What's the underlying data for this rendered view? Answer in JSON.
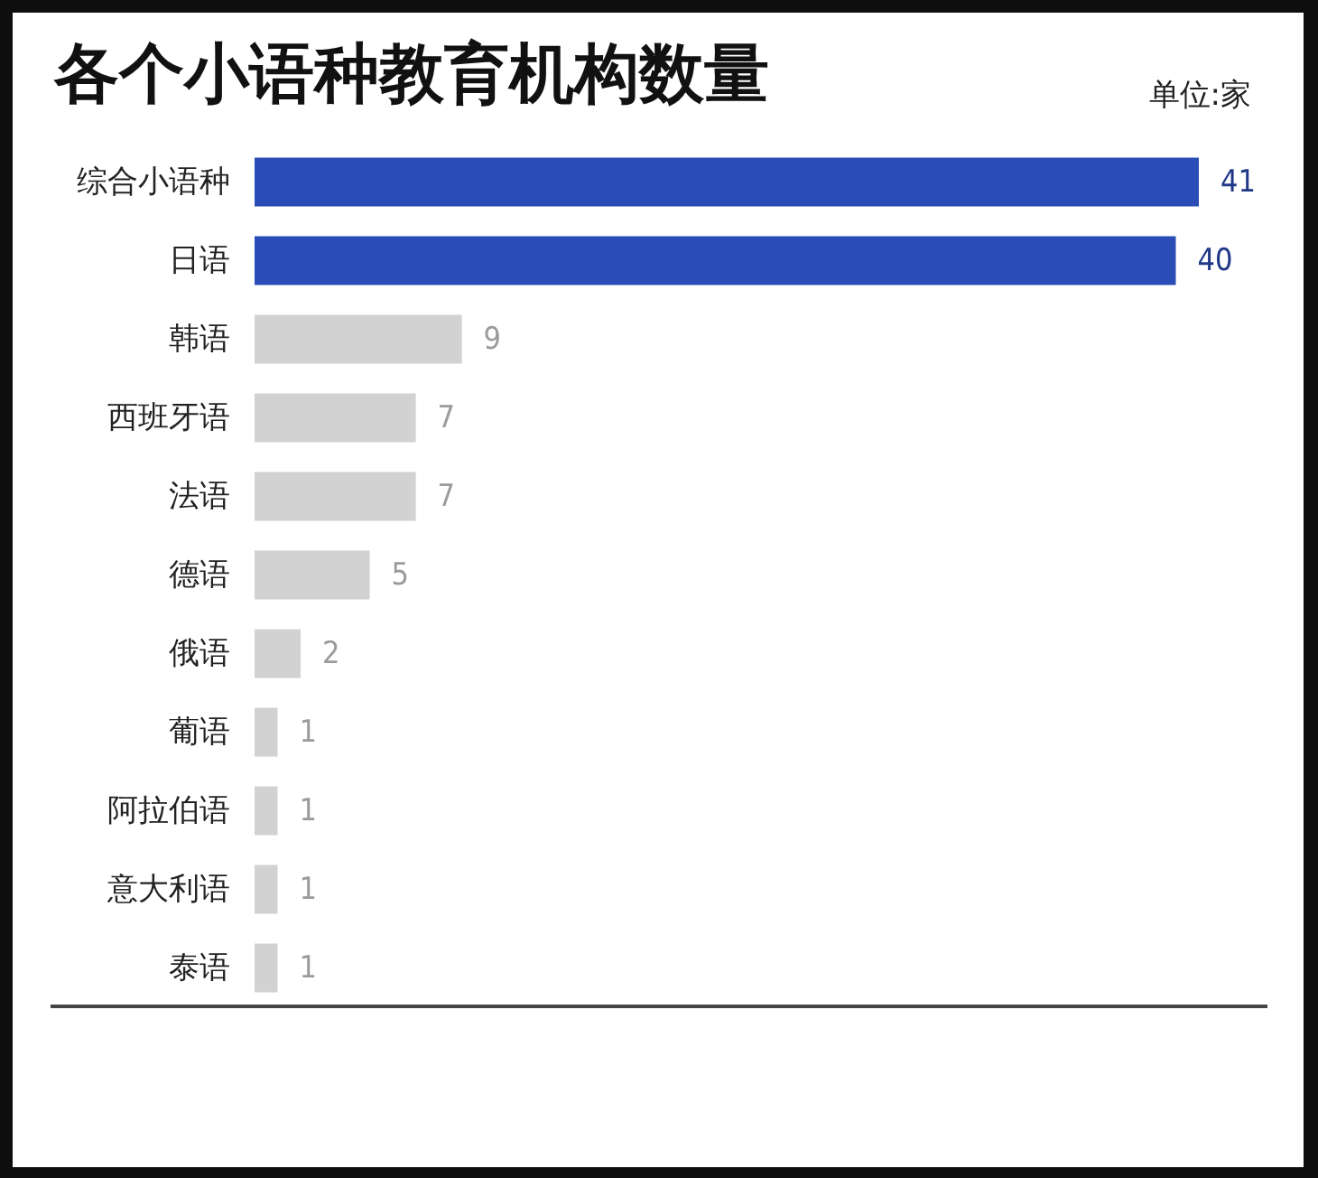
{
  "chart_data": {
    "type": "bar",
    "orientation": "horizontal",
    "title": "各个小语种教育机构数量",
    "annotations": [
      "单位:家"
    ],
    "categories": [
      "综合小语种",
      "日语",
      "韩语",
      "西班牙语",
      "法语",
      "德语",
      "俄语",
      "葡语",
      "阿拉伯语",
      "意大利语",
      "泰语"
    ],
    "values": [
      41,
      40,
      9,
      7,
      7,
      5,
      2,
      1,
      1,
      1,
      1
    ],
    "colors": [
      "#2a4cb6",
      "#2a4cb6",
      "#d2d2d2",
      "#d2d2d2",
      "#d2d2d2",
      "#d2d2d2",
      "#d2d2d2",
      "#d2d2d2",
      "#d2d2d2",
      "#d2d2d2",
      "#d2d2d2"
    ],
    "data_labels": true
  }
}
